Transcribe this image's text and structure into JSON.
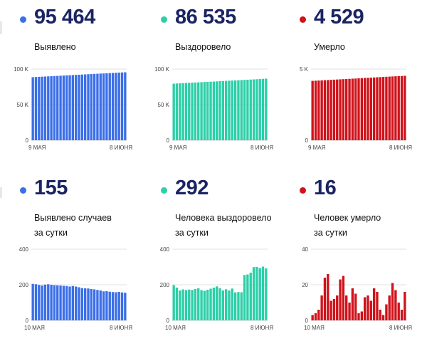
{
  "colors": {
    "blue": "#3b6fe8",
    "teal": "#2ccfa8",
    "red": "#d0121a",
    "value_text": "#1b2463"
  },
  "panels": [
    {
      "id": "detected-total",
      "value": "95 464",
      "label_lines": [
        "Выявлено"
      ],
      "color": "#3b6fe8"
    },
    {
      "id": "recovered-total",
      "value": "86 535",
      "label_lines": [
        "Выздоровело"
      ],
      "color": "#2ccfa8"
    },
    {
      "id": "deaths-total",
      "value": "4 529",
      "label_lines": [
        "Умерло"
      ],
      "color": "#d0121a"
    },
    {
      "id": "detected-daily",
      "value": "155",
      "label_lines": [
        "Выявлено случаев",
        "за сутки"
      ],
      "color": "#3b6fe8"
    },
    {
      "id": "recovered-daily",
      "value": "292",
      "label_lines": [
        "Человека выздоровело",
        "за сутки"
      ],
      "color": "#2ccfa8"
    },
    {
      "id": "deaths-daily",
      "value": "16",
      "label_lines": [
        "Человек умерло",
        "за сутки"
      ],
      "color": "#d0121a"
    }
  ],
  "chart_data": [
    {
      "type": "bar",
      "panel": "detected-total",
      "x_start_label": "9 МАЯ",
      "x_end_label": "8 ИЮНЯ",
      "ylim": [
        0,
        100000
      ],
      "y_ticks": [
        0,
        50000,
        100000
      ],
      "y_tick_labels": [
        "0",
        "50 K",
        "100 K"
      ],
      "series": [
        {
          "values": [
            88600,
            88830,
            89060,
            89290,
            89520,
            89750,
            89980,
            90210,
            90440,
            90670,
            90900,
            91130,
            91360,
            91590,
            91820,
            92050,
            92280,
            92510,
            92740,
            92970,
            93200,
            93430,
            93660,
            93890,
            94120,
            94350,
            94580,
            94810,
            95040,
            95270,
            95464
          ]
        }
      ]
    },
    {
      "type": "bar",
      "panel": "recovered-total",
      "x_start_label": "9 МАЯ",
      "x_end_label": "8 ИЮНЯ",
      "ylim": [
        0,
        100000
      ],
      "y_ticks": [
        0,
        50000,
        100000
      ],
      "y_tick_labels": [
        "0",
        "50 K",
        "100 K"
      ],
      "series": [
        {
          "values": [
            79500,
            79730,
            79960,
            80190,
            80420,
            80650,
            80880,
            81110,
            81340,
            81570,
            81800,
            82030,
            82260,
            82490,
            82720,
            82950,
            83180,
            83410,
            83640,
            83870,
            84100,
            84330,
            84560,
            84790,
            85020,
            85250,
            85480,
            85710,
            85940,
            86240,
            86535
          ]
        }
      ]
    },
    {
      "type": "bar",
      "panel": "deaths-total",
      "x_start_label": "9 МАЯ",
      "x_end_label": "8 ИЮНЯ",
      "ylim": [
        0,
        5000
      ],
      "y_ticks": [
        0,
        5000
      ],
      "y_tick_labels": [
        "0",
        "5 K"
      ],
      "series": [
        {
          "values": [
            4170,
            4182,
            4194,
            4206,
            4218,
            4230,
            4242,
            4254,
            4266,
            4278,
            4290,
            4302,
            4314,
            4326,
            4338,
            4350,
            4362,
            4374,
            4386,
            4398,
            4410,
            4422,
            4434,
            4446,
            4458,
            4470,
            4482,
            4494,
            4506,
            4513,
            4529
          ]
        }
      ]
    },
    {
      "type": "bar",
      "panel": "detected-daily",
      "x_start_label": "10 МАЯ",
      "x_end_label": "8 ИЮНЯ",
      "ylim": [
        0,
        400
      ],
      "y_ticks": [
        0,
        200,
        400
      ],
      "y_tick_labels": [
        "0",
        "200",
        "400"
      ],
      "series": [
        {
          "values": [
            205,
            203,
            199,
            196,
            201,
            203,
            200,
            198,
            197,
            196,
            194,
            193,
            190,
            193,
            190,
            186,
            181,
            180,
            179,
            176,
            174,
            171,
            168,
            163,
            164,
            161,
            159,
            158,
            160,
            157,
            155
          ]
        }
      ]
    },
    {
      "type": "bar",
      "panel": "recovered-daily",
      "x_start_label": "10 МАЯ",
      "x_end_label": "8 ИЮНЯ",
      "ylim": [
        0,
        400
      ],
      "y_ticks": [
        0,
        200,
        400
      ],
      "y_tick_labels": [
        "0",
        "200",
        "400"
      ],
      "series": [
        {
          "values": [
            198,
            184,
            168,
            174,
            170,
            173,
            171,
            176,
            180,
            170,
            166,
            172,
            178,
            184,
            191,
            181,
            168,
            175,
            168,
            179,
            157,
            159,
            158,
            255,
            258,
            268,
            299,
            300,
            294,
            302,
            292
          ]
        }
      ]
    },
    {
      "type": "bar",
      "panel": "deaths-daily",
      "x_start_label": "10 МАЯ",
      "x_end_label": "8 ИЮНЯ",
      "ylim": [
        0,
        40
      ],
      "y_ticks": [
        0,
        20,
        40
      ],
      "y_tick_labels": [
        "0",
        "20",
        "40"
      ],
      "series": [
        {
          "values": [
            3,
            4,
            6,
            14,
            24,
            26,
            11,
            12,
            14,
            23,
            25,
            14,
            10,
            18,
            15,
            4,
            5,
            13,
            14,
            11,
            18,
            16,
            6,
            3,
            9,
            14,
            21,
            17,
            10,
            6,
            16
          ]
        }
      ]
    }
  ]
}
